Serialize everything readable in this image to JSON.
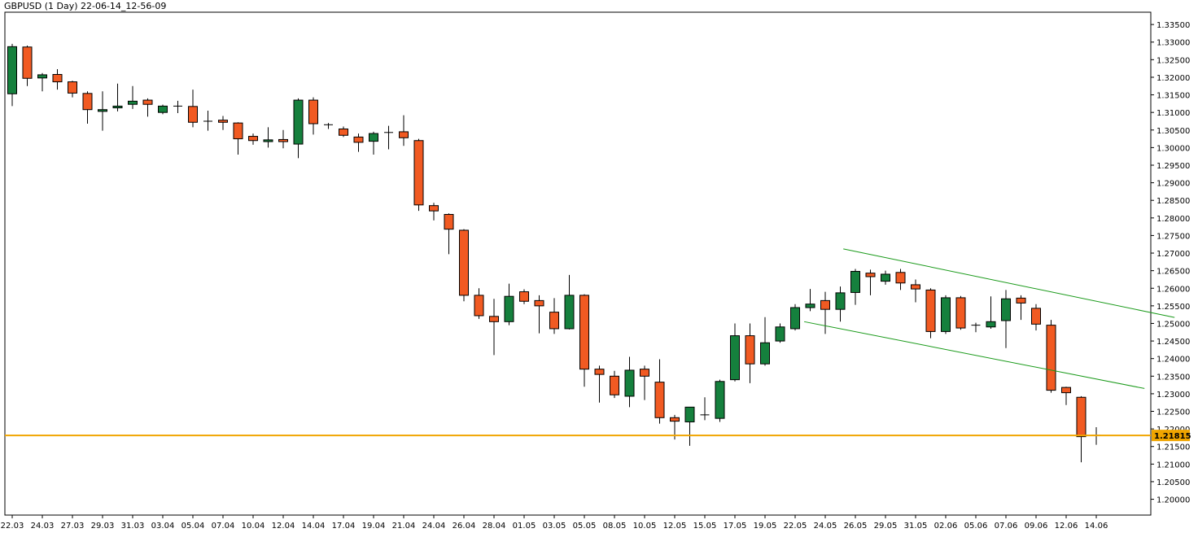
{
  "header": {
    "title": "GBPUSD (1 Day) 22-06-14_12-56-09"
  },
  "colors": {
    "bullish": "#15803d",
    "bearish": "#f15a22",
    "wick": "#000000",
    "trendline": "#1a9a1a",
    "current_price_line": "#f0a500",
    "current_price_label_bg": "#f0a500"
  },
  "chart_data": {
    "type": "candlestick",
    "title": "GBPUSD (1 Day) 22-06-14_12-56-09",
    "ylim": [
      1.1955,
      1.3385
    ],
    "y_ticks": [
      "1.33500",
      "1.33000",
      "1.32500",
      "1.32000",
      "1.31500",
      "1.31000",
      "1.30500",
      "1.30000",
      "1.29500",
      "1.29000",
      "1.28500",
      "1.28000",
      "1.27500",
      "1.27000",
      "1.26500",
      "1.26000",
      "1.25500",
      "1.25000",
      "1.24500",
      "1.24000",
      "1.23500",
      "1.23000",
      "1.22500",
      "1.22000",
      "1.21500",
      "1.21000",
      "1.20500",
      "1.20000"
    ],
    "x_ticks": [
      {
        "index": 0,
        "label": "22.03"
      },
      {
        "index": 2,
        "label": "24.03"
      },
      {
        "index": 4,
        "label": "27.03"
      },
      {
        "index": 6,
        "label": "29.03"
      },
      {
        "index": 8,
        "label": "31.03"
      },
      {
        "index": 10,
        "label": "03.04"
      },
      {
        "index": 12,
        "label": "05.04"
      },
      {
        "index": 14,
        "label": "07.04"
      },
      {
        "index": 16,
        "label": "10.04"
      },
      {
        "index": 18,
        "label": "12.04"
      },
      {
        "index": 20,
        "label": "14.04"
      },
      {
        "index": 22,
        "label": "17.04"
      },
      {
        "index": 24,
        "label": "19.04"
      },
      {
        "index": 26,
        "label": "21.04"
      },
      {
        "index": 28,
        "label": "24.04"
      },
      {
        "index": 30,
        "label": "26.04"
      },
      {
        "index": 32,
        "label": "28.04"
      },
      {
        "index": 34,
        "label": "01.05"
      },
      {
        "index": 36,
        "label": "03.05"
      },
      {
        "index": 38,
        "label": "05.05"
      },
      {
        "index": 40,
        "label": "08.05"
      },
      {
        "index": 42,
        "label": "10.05"
      },
      {
        "index": 44,
        "label": "12.05"
      },
      {
        "index": 46,
        "label": "15.05"
      },
      {
        "index": 48,
        "label": "17.05"
      },
      {
        "index": 50,
        "label": "19.05"
      },
      {
        "index": 52,
        "label": "22.05"
      },
      {
        "index": 54,
        "label": "24.05"
      },
      {
        "index": 56,
        "label": "26.05"
      },
      {
        "index": 58,
        "label": "29.05"
      },
      {
        "index": 60,
        "label": "31.05"
      },
      {
        "index": 62,
        "label": "02.06"
      },
      {
        "index": 64,
        "label": "05.06"
      },
      {
        "index": 66,
        "label": "07.06"
      },
      {
        "index": 68,
        "label": "09.06"
      },
      {
        "index": 70,
        "label": "12.06"
      },
      {
        "index": 72,
        "label": "14.06"
      }
    ],
    "candles": [
      {
        "o": 1.3153,
        "h": 1.3295,
        "l": 1.3118,
        "c": 1.3287
      },
      {
        "o": 1.3286,
        "h": 1.329,
        "l": 1.3175,
        "c": 1.3197
      },
      {
        "o": 1.3198,
        "h": 1.3212,
        "l": 1.316,
        "c": 1.3207
      },
      {
        "o": 1.3208,
        "h": 1.3223,
        "l": 1.3165,
        "c": 1.3187
      },
      {
        "o": 1.3187,
        "h": 1.319,
        "l": 1.3143,
        "c": 1.3155
      },
      {
        "o": 1.3154,
        "h": 1.316,
        "l": 1.3068,
        "c": 1.3108
      },
      {
        "o": 1.3103,
        "h": 1.316,
        "l": 1.3048,
        "c": 1.3108
      },
      {
        "o": 1.3113,
        "h": 1.3182,
        "l": 1.3103,
        "c": 1.3118
      },
      {
        "o": 1.3123,
        "h": 1.3175,
        "l": 1.311,
        "c": 1.3132
      },
      {
        "o": 1.3135,
        "h": 1.314,
        "l": 1.3088,
        "c": 1.3123
      },
      {
        "o": 1.31,
        "h": 1.3122,
        "l": 1.3095,
        "c": 1.3118
      },
      {
        "o": 1.3118,
        "h": 1.3133,
        "l": 1.3098,
        "c": 1.3118
      },
      {
        "o": 1.3117,
        "h": 1.3165,
        "l": 1.3058,
        "c": 1.3072
      },
      {
        "o": 1.3075,
        "h": 1.3105,
        "l": 1.3048,
        "c": 1.3075
      },
      {
        "o": 1.3078,
        "h": 1.309,
        "l": 1.305,
        "c": 1.3072
      },
      {
        "o": 1.307,
        "h": 1.3072,
        "l": 1.298,
        "c": 1.3025
      },
      {
        "o": 1.3032,
        "h": 1.304,
        "l": 1.3008,
        "c": 1.302
      },
      {
        "o": 1.3017,
        "h": 1.3058,
        "l": 1.3,
        "c": 1.3022
      },
      {
        "o": 1.3023,
        "h": 1.305,
        "l": 1.2998,
        "c": 1.3017
      },
      {
        "o": 1.301,
        "h": 1.314,
        "l": 1.297,
        "c": 1.3135
      },
      {
        "o": 1.3135,
        "h": 1.3143,
        "l": 1.3037,
        "c": 1.3068
      },
      {
        "o": 1.3065,
        "h": 1.307,
        "l": 1.3053,
        "c": 1.3063
      },
      {
        "o": 1.3053,
        "h": 1.306,
        "l": 1.303,
        "c": 1.3035
      },
      {
        "o": 1.303,
        "h": 1.304,
        "l": 1.2988,
        "c": 1.3015
      },
      {
        "o": 1.3018,
        "h": 1.3045,
        "l": 1.298,
        "c": 1.304
      },
      {
        "o": 1.3043,
        "h": 1.3062,
        "l": 1.2995,
        "c": 1.3043
      },
      {
        "o": 1.3045,
        "h": 1.3092,
        "l": 1.3005,
        "c": 1.3028
      },
      {
        "o": 1.302,
        "h": 1.3025,
        "l": 1.282,
        "c": 1.2837
      },
      {
        "o": 1.2835,
        "h": 1.2843,
        "l": 1.2793,
        "c": 1.282
      },
      {
        "o": 1.281,
        "h": 1.2813,
        "l": 1.2697,
        "c": 1.2768
      },
      {
        "o": 1.2765,
        "h": 1.2768,
        "l": 1.2563,
        "c": 1.258
      },
      {
        "o": 1.258,
        "h": 1.26,
        "l": 1.2513,
        "c": 1.2522
      },
      {
        "o": 1.252,
        "h": 1.257,
        "l": 1.241,
        "c": 1.2505
      },
      {
        "o": 1.2505,
        "h": 1.2613,
        "l": 1.2495,
        "c": 1.2577
      },
      {
        "o": 1.259,
        "h": 1.2597,
        "l": 1.2555,
        "c": 1.2563
      },
      {
        "o": 1.2565,
        "h": 1.258,
        "l": 1.2472,
        "c": 1.255
      },
      {
        "o": 1.2532,
        "h": 1.2572,
        "l": 1.247,
        "c": 1.2485
      },
      {
        "o": 1.2485,
        "h": 1.2638,
        "l": 1.2483,
        "c": 1.258
      },
      {
        "o": 1.258,
        "h": 1.2583,
        "l": 1.232,
        "c": 1.237
      },
      {
        "o": 1.237,
        "h": 1.238,
        "l": 1.2275,
        "c": 1.2355
      },
      {
        "o": 1.235,
        "h": 1.2365,
        "l": 1.2288,
        "c": 1.2297
      },
      {
        "o": 1.2293,
        "h": 1.2405,
        "l": 1.2262,
        "c": 1.2367
      },
      {
        "o": 1.237,
        "h": 1.238,
        "l": 1.2282,
        "c": 1.235
      },
      {
        "o": 1.2333,
        "h": 1.2398,
        "l": 1.2215,
        "c": 1.2232
      },
      {
        "o": 1.2232,
        "h": 1.224,
        "l": 1.217,
        "c": 1.2222
      },
      {
        "o": 1.222,
        "h": 1.2262,
        "l": 1.2152,
        "c": 1.2262
      },
      {
        "o": 1.2238,
        "h": 1.229,
        "l": 1.2225,
        "c": 1.224
      },
      {
        "o": 1.223,
        "h": 1.234,
        "l": 1.222,
        "c": 1.2335
      },
      {
        "o": 1.234,
        "h": 1.25,
        "l": 1.2335,
        "c": 1.2465
      },
      {
        "o": 1.2465,
        "h": 1.25,
        "l": 1.233,
        "c": 1.2385
      },
      {
        "o": 1.2385,
        "h": 1.2518,
        "l": 1.238,
        "c": 1.2445
      },
      {
        "o": 1.245,
        "h": 1.25,
        "l": 1.2445,
        "c": 1.249
      },
      {
        "o": 1.2485,
        "h": 1.2555,
        "l": 1.248,
        "c": 1.2545
      },
      {
        "o": 1.2545,
        "h": 1.2598,
        "l": 1.2535,
        "c": 1.2555
      },
      {
        "o": 1.2565,
        "h": 1.259,
        "l": 1.247,
        "c": 1.254
      },
      {
        "o": 1.254,
        "h": 1.2605,
        "l": 1.2505,
        "c": 1.2587
      },
      {
        "o": 1.2588,
        "h": 1.2655,
        "l": 1.2553,
        "c": 1.2648
      },
      {
        "o": 1.2643,
        "h": 1.2653,
        "l": 1.258,
        "c": 1.2633
      },
      {
        "o": 1.262,
        "h": 1.265,
        "l": 1.261,
        "c": 1.264
      },
      {
        "o": 1.2645,
        "h": 1.2655,
        "l": 1.2595,
        "c": 1.2615
      },
      {
        "o": 1.261,
        "h": 1.2625,
        "l": 1.256,
        "c": 1.2598
      },
      {
        "o": 1.2595,
        "h": 1.26,
        "l": 1.2458,
        "c": 1.2477
      },
      {
        "o": 1.2477,
        "h": 1.258,
        "l": 1.247,
        "c": 1.2573
      },
      {
        "o": 1.2573,
        "h": 1.2578,
        "l": 1.2482,
        "c": 1.2487
      },
      {
        "o": 1.2493,
        "h": 1.2502,
        "l": 1.2475,
        "c": 1.2495
      },
      {
        "o": 1.249,
        "h": 1.2577,
        "l": 1.2485,
        "c": 1.2505
      },
      {
        "o": 1.2508,
        "h": 1.2595,
        "l": 1.243,
        "c": 1.257
      },
      {
        "o": 1.2572,
        "h": 1.258,
        "l": 1.251,
        "c": 1.2558
      },
      {
        "o": 1.2543,
        "h": 1.2555,
        "l": 1.248,
        "c": 1.2498
      },
      {
        "o": 1.2495,
        "h": 1.251,
        "l": 1.2303,
        "c": 1.231
      },
      {
        "o": 1.2318,
        "h": 1.232,
        "l": 1.2268,
        "c": 1.2303
      },
      {
        "o": 1.229,
        "h": 1.2293,
        "l": 1.2105,
        "c": 1.2178
      },
      {
        "o": 1.2182,
        "h": 1.2205,
        "l": 1.2155,
        "c": 1.2181
      }
    ],
    "trendlines": [
      {
        "from": {
          "index": 55.2,
          "y": 1.2712
        },
        "to": {
          "index": 77.2,
          "y": 1.2517
        }
      },
      {
        "from": {
          "index": 52.6,
          "y": 1.2505
        },
        "to": {
          "index": 75.2,
          "y": 1.2315
        }
      }
    ],
    "current_price": {
      "value": 1.21815,
      "label": "1.21815"
    }
  }
}
